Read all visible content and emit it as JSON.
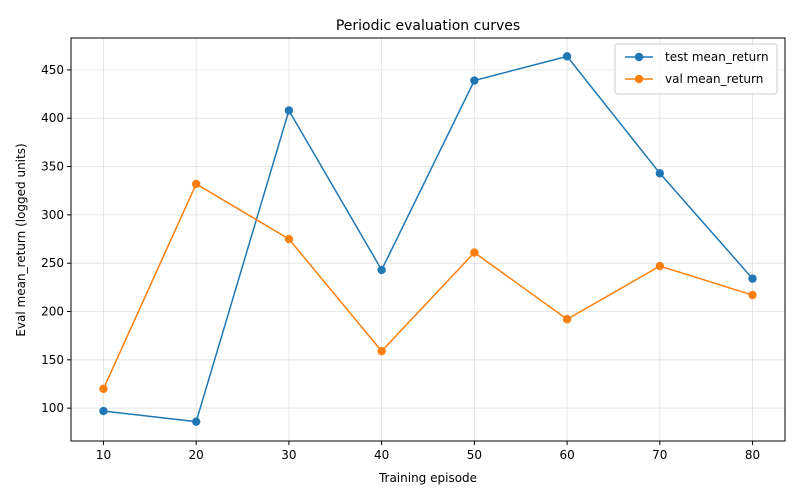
{
  "chart_data": {
    "type": "line",
    "title": "Periodic evaluation curves",
    "xlabel": "Training episode",
    "ylabel": "Eval mean_return (logged units)",
    "x": [
      10,
      20,
      30,
      40,
      50,
      60,
      70,
      80
    ],
    "xticks": [
      10,
      20,
      30,
      40,
      50,
      60,
      70,
      80
    ],
    "yticks": [
      100,
      150,
      200,
      250,
      300,
      350,
      400,
      450
    ],
    "xlim": [
      6.5,
      83.5
    ],
    "ylim": [
      66,
      483
    ],
    "grid": true,
    "legend_position": "top-right",
    "series": [
      {
        "name": "test mean_return",
        "color": "#1f77b4",
        "values": [
          97,
          86,
          408,
          243,
          439,
          464,
          343,
          234
        ]
      },
      {
        "name": "val mean_return",
        "color": "#ff7f0e",
        "values": [
          120,
          332,
          275,
          159,
          261,
          192,
          247,
          217
        ]
      }
    ]
  }
}
